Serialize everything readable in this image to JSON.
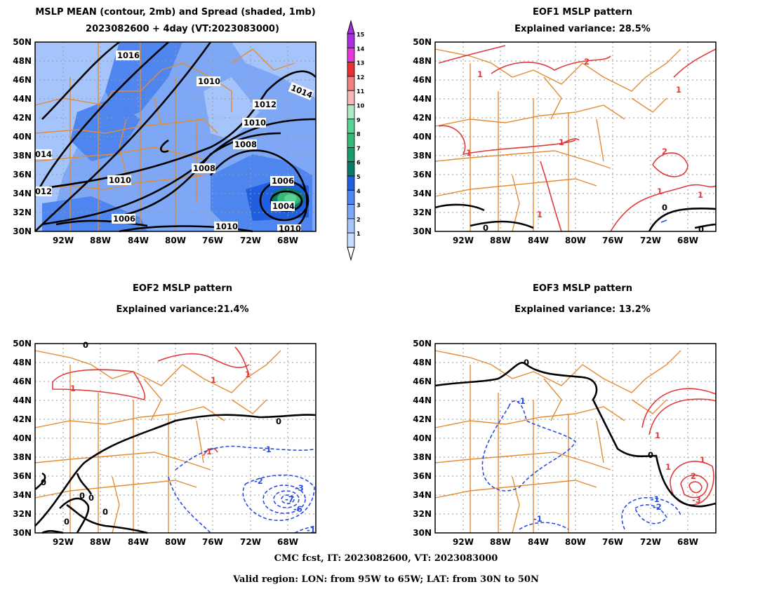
{
  "panels": [
    {
      "title_line1": "MSLP MEAN (contour, 2mb) and Spread (shaded, 1mb)",
      "title_line2": "2023082600 + 4day (VT:2023083000)"
    },
    {
      "title_line1": "EOF1 MSLP pattern",
      "title_line2": "Explained variance: 28.5%"
    },
    {
      "title_line1": "EOF2 MSLP pattern",
      "title_line2": "Explained variance:21.4%"
    },
    {
      "title_line1": "EOF3 MSLP pattern",
      "title_line2": "Explained variance: 13.2%"
    }
  ],
  "axes": {
    "lat_labels": [
      "50N",
      "48N",
      "46N",
      "44N",
      "42N",
      "40N",
      "38N",
      "36N",
      "34N",
      "32N",
      "30N"
    ],
    "lon_labels": [
      "92W",
      "88W",
      "84W",
      "80W",
      "76W",
      "72W",
      "68W"
    ],
    "lon_range": [
      -95,
      -65
    ],
    "lat_range": [
      30,
      50
    ]
  },
  "colorbar": {
    "levels": [
      "1",
      "2",
      "3",
      "4",
      "5",
      "6",
      "7",
      "8",
      "9",
      "10",
      "11",
      "12",
      "13",
      "14",
      "15"
    ],
    "colors": [
      "#c8dcff",
      "#a5c4fb",
      "#7ea8f5",
      "#4f85ee",
      "#1f5fe0",
      "#0b7a6a",
      "#1a9b6e",
      "#34b878",
      "#5ad396",
      "#aee8c6",
      "#f4b8b8",
      "#f08080",
      "#ea3030",
      "#e637d8",
      "#a92fe0"
    ]
  },
  "mean_contour_labels": [
    "1016",
    "1010",
    "1014",
    "1012",
    "1010",
    "1008",
    "1008",
    "1010",
    "1006",
    "1006",
    "1004",
    "1010",
    "1010",
    "014",
    "012"
  ],
  "eof1_labels": [
    "1",
    "2",
    "1",
    "1",
    "2",
    "1",
    "1",
    "1",
    "1",
    "0",
    "0",
    "0"
  ],
  "eof2_labels": [
    "0",
    "1",
    "1",
    "1",
    "1",
    "0",
    "-1",
    "-2",
    "-3",
    "-7",
    "-6",
    "-1",
    "0",
    "0",
    "0",
    "0",
    "0"
  ],
  "eof3_labels": [
    "0",
    "1",
    "-1",
    "1",
    "0",
    "1",
    "2",
    "-3",
    "-1",
    "-2",
    "-1"
  ],
  "footer": {
    "line1": "CMC fcst, IT: 2023082600, VT: 2023083000",
    "line2": "Valid region: LON: from 95W to 65W; LAT: from 30N to 50N"
  },
  "colors": {
    "state_lines": "#e58c32",
    "zero_contour": "#000000",
    "positive": "#e03a3a",
    "negative": "#2a4ee0",
    "grid": "#9a9a9a"
  }
}
